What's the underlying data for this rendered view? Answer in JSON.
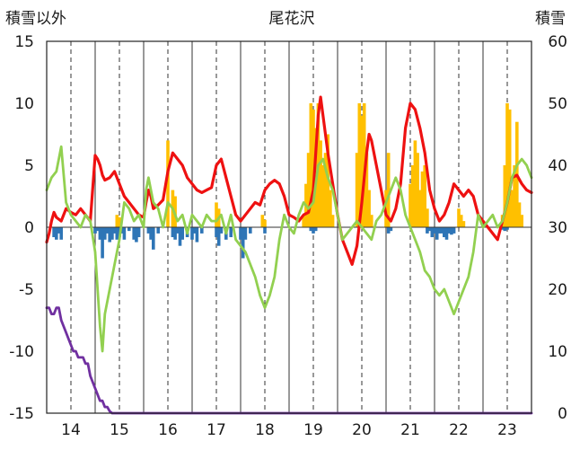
{
  "chart_data": {
    "type": "line",
    "title": "尾花沢",
    "left_axis_label": "積雪以外",
    "right_axis_label": "積雪",
    "left_ylim": [
      -15,
      15
    ],
    "left_yticks": [
      "15",
      "10",
      "5",
      "0",
      "-5",
      "-10",
      "-15"
    ],
    "right_ylim": [
      0,
      60
    ],
    "right_yticks": [
      "60",
      "50",
      "40",
      "30",
      "20",
      "10",
      "0"
    ],
    "xlim": [
      13.5,
      23.5
    ],
    "xticks": [
      "14",
      "15",
      "16",
      "17",
      "18",
      "19",
      "20",
      "21",
      "22",
      "23"
    ],
    "grid": "vertical dashed lines at each year, solid lines at half-years",
    "colors": {
      "red_line": "#ee1111",
      "green_line": "#92d050",
      "purple_line": "#7030a0",
      "orange_bars": "#ffc000",
      "blue_bars": "#2e75b6"
    },
    "series": [
      {
        "color": "#ee1111",
        "axis": "left",
        "x": [
          13.5,
          13.55,
          13.6,
          13.65,
          13.7,
          13.8,
          13.85,
          13.9,
          14.0,
          14.1,
          14.2,
          14.3,
          14.4,
          14.5,
          14.55,
          14.6,
          14.65,
          14.7,
          14.8,
          14.9,
          15.0,
          15.1,
          15.2,
          15.3,
          15.4,
          15.5,
          15.55,
          15.6,
          15.65,
          15.7,
          15.8,
          15.9,
          16.0,
          16.1,
          16.2,
          16.3,
          16.4,
          16.5,
          16.6,
          16.7,
          16.8,
          16.9,
          17.0,
          17.1,
          17.2,
          17.3,
          17.4,
          17.5,
          17.6,
          17.7,
          17.8,
          17.9,
          18.0,
          18.1,
          18.2,
          18.3,
          18.4,
          18.5,
          18.6,
          18.7,
          18.8,
          18.9,
          19.0,
          19.05,
          19.1,
          19.15,
          19.2,
          19.3,
          19.4,
          19.5,
          19.6,
          19.7,
          19.8,
          19.9,
          20.0,
          20.1,
          20.15,
          20.2,
          20.3,
          20.4,
          20.5,
          20.6,
          20.7,
          20.8,
          20.9,
          21.0,
          21.1,
          21.2,
          21.3,
          21.4,
          21.5,
          21.6,
          21.7,
          21.8,
          21.9,
          22.0,
          22.1,
          22.2,
          22.3,
          22.4,
          22.5,
          22.6,
          22.7,
          22.8,
          22.9,
          23.0,
          23.1,
          23.2,
          23.3,
          23.4,
          23.5
        ],
        "values": [
          -1.2,
          -0.5,
          0.5,
          1.2,
          0.8,
          0.5,
          1.0,
          1.5,
          1.2,
          1.0,
          1.5,
          1.0,
          0.5,
          5.8,
          5.5,
          5.0,
          4.2,
          3.8,
          4.0,
          4.5,
          3.5,
          2.5,
          2.0,
          1.5,
          1.0,
          0.8,
          2.0,
          3.0,
          2.5,
          1.5,
          1.8,
          2.2,
          4.5,
          6.0,
          5.5,
          5.0,
          4.0,
          3.5,
          3.0,
          2.8,
          3.0,
          3.2,
          5.0,
          5.5,
          4.0,
          2.5,
          1.0,
          0.5,
          1.0,
          1.5,
          2.0,
          1.8,
          3.0,
          3.5,
          3.8,
          3.5,
          2.5,
          1.0,
          0.8,
          0.5,
          1.0,
          1.2,
          3.0,
          6.0,
          9.0,
          10.5,
          9.0,
          6.0,
          3.5,
          1.0,
          -1.0,
          -2.0,
          -3.0,
          -1.5,
          2.0,
          6.0,
          7.5,
          7.0,
          5.0,
          3.0,
          1.0,
          0.5,
          1.5,
          3.5,
          8.0,
          10.0,
          9.5,
          8.0,
          6.0,
          3.0,
          1.5,
          0.5,
          1.0,
          2.0,
          3.5,
          3.0,
          2.5,
          3.0,
          2.5,
          1.0,
          0.5,
          0.0,
          -0.5,
          -1.0,
          0.5,
          2.0,
          4.0,
          4.2,
          3.5,
          3.0,
          2.8
        ]
      },
      {
        "color": "#92d050",
        "axis": "left",
        "x": [
          13.5,
          13.6,
          13.7,
          13.8,
          13.9,
          14.0,
          14.1,
          14.2,
          14.3,
          14.4,
          14.5,
          14.6,
          14.65,
          14.7,
          14.8,
          14.9,
          15.0,
          15.1,
          15.2,
          15.3,
          15.4,
          15.5,
          15.55,
          15.6,
          15.7,
          15.8,
          15.9,
          16.0,
          16.1,
          16.2,
          16.3,
          16.4,
          16.5,
          16.6,
          16.7,
          16.8,
          16.9,
          17.0,
          17.1,
          17.2,
          17.3,
          17.4,
          17.5,
          17.6,
          17.7,
          17.8,
          17.9,
          18.0,
          18.1,
          18.2,
          18.3,
          18.4,
          18.5,
          18.6,
          18.7,
          18.8,
          18.9,
          19.0,
          19.1,
          19.2,
          19.3,
          19.4,
          19.5,
          19.6,
          19.7,
          19.8,
          19.9,
          20.0,
          20.1,
          20.2,
          20.3,
          20.4,
          20.5,
          20.6,
          20.7,
          20.8,
          20.9,
          21.0,
          21.1,
          21.2,
          21.3,
          21.4,
          21.5,
          21.6,
          21.7,
          21.8,
          21.9,
          22.0,
          22.1,
          22.2,
          22.3,
          22.4,
          22.5,
          22.6,
          22.7,
          22.8,
          22.9,
          23.0,
          23.1,
          23.2,
          23.3,
          23.4,
          23.5
        ],
        "values": [
          3.0,
          4.0,
          4.5,
          6.5,
          2.0,
          1.0,
          0.5,
          0.0,
          1.0,
          0.5,
          -2.0,
          -8.0,
          -10.0,
          -7.0,
          -5.0,
          -3.0,
          -1.0,
          2.0,
          1.5,
          0.5,
          1.0,
          0.0,
          3.0,
          4.0,
          2.0,
          1.5,
          0.0,
          2.0,
          1.5,
          0.5,
          1.0,
          -0.5,
          1.0,
          0.5,
          0.0,
          1.0,
          0.5,
          0.5,
          1.0,
          -0.5,
          1.0,
          -1.0,
          -1.5,
          -2.0,
          -3.0,
          -4.0,
          -5.5,
          -6.5,
          -5.5,
          -4.0,
          -1.0,
          1.0,
          0.0,
          -0.5,
          1.0,
          2.0,
          1.5,
          2.0,
          5.0,
          5.5,
          4.0,
          3.0,
          1.0,
          -1.0,
          -0.5,
          0.0,
          0.5,
          0.0,
          -0.5,
          -1.0,
          0.5,
          1.0,
          2.0,
          3.0,
          4.0,
          3.0,
          1.0,
          0.0,
          -1.0,
          -2.0,
          -3.5,
          -4.0,
          -5.0,
          -5.5,
          -5.0,
          -6.0,
          -7.0,
          -6.0,
          -5.0,
          -4.0,
          -2.0,
          1.0,
          0.0,
          0.5,
          1.0,
          0.0,
          0.5,
          2.0,
          4.0,
          5.0,
          5.5,
          5.0,
          4.0
        ]
      },
      {
        "color": "#7030a0",
        "axis": "right",
        "x": [
          13.5,
          13.55,
          13.6,
          13.65,
          13.7,
          13.75,
          13.8,
          13.85,
          13.9,
          13.95,
          14.0,
          14.05,
          14.1,
          14.15,
          14.2,
          14.25,
          14.3,
          14.35,
          14.4,
          14.45,
          14.5,
          14.55,
          14.6,
          14.65,
          14.7,
          14.75,
          14.8,
          14.85,
          14.9,
          14.95,
          15.0,
          15.5,
          16.0,
          17.0,
          18.0,
          19.0,
          20.0,
          21.0,
          22.0,
          23.0,
          23.5
        ],
        "values": [
          17,
          17,
          16,
          16,
          17,
          17,
          15,
          14,
          13,
          12,
          11,
          10,
          10,
          9,
          9,
          9,
          8,
          8,
          6,
          5,
          4,
          3,
          2,
          2,
          1,
          1,
          0.3,
          0,
          0,
          0,
          0,
          0,
          0,
          0,
          0,
          0,
          0,
          0,
          0,
          0,
          0
        ]
      }
    ],
    "bars": [
      {
        "color": "#ffc000",
        "axis": "left",
        "x": [
          14.95,
          15.0,
          16.0,
          16.1,
          16.15,
          17.0,
          17.05,
          17.95,
          18.0,
          18.8,
          18.85,
          18.9,
          18.95,
          19.0,
          19.05,
          19.1,
          19.15,
          19.2,
          19.25,
          19.3,
          19.35,
          19.4,
          19.9,
          19.95,
          20.0,
          20.05,
          20.1,
          20.15,
          20.2,
          20.5,
          20.55,
          21.0,
          21.05,
          21.1,
          21.15,
          21.2,
          21.25,
          21.3,
          21.35,
          22.0,
          22.05,
          22.1,
          22.9,
          22.95,
          23.0,
          23.05,
          23.1,
          23.15,
          23.2,
          23.25,
          23.3
        ],
        "values": [
          1.0,
          0.8,
          7.0,
          3.0,
          2.5,
          2.0,
          1.5,
          1.0,
          0.6,
          1.0,
          3.5,
          6.0,
          10.0,
          9.5,
          8.0,
          10.0,
          7.0,
          5.0,
          6.0,
          7.5,
          3.0,
          1.0,
          6.0,
          10.0,
          9.0,
          10.0,
          6.0,
          3.0,
          1.0,
          3.0,
          6.0,
          3.5,
          5.0,
          7.0,
          6.0,
          3.0,
          4.5,
          5.0,
          1.5,
          1.5,
          1.0,
          0.5,
          1.0,
          5.0,
          10.0,
          9.5,
          3.0,
          5.0,
          8.5,
          2.0,
          1.0
        ]
      },
      {
        "color": "#2e75b6",
        "axis": "left",
        "x": [
          13.65,
          13.7,
          13.75,
          13.8,
          14.5,
          14.55,
          14.6,
          14.65,
          14.7,
          14.75,
          14.8,
          14.85,
          14.9,
          14.95,
          15.0,
          15.05,
          15.1,
          15.2,
          15.3,
          15.35,
          15.4,
          15.6,
          15.65,
          15.7,
          15.8,
          16.1,
          16.15,
          16.2,
          16.25,
          16.3,
          16.4,
          16.5,
          16.55,
          16.6,
          16.7,
          17.0,
          17.05,
          17.1,
          17.2,
          17.3,
          17.5,
          17.55,
          17.6,
          17.7,
          18.0,
          18.95,
          19.0,
          19.05,
          20.55,
          20.6,
          21.35,
          21.4,
          21.45,
          21.5,
          21.55,
          21.6,
          21.65,
          21.7,
          21.75,
          21.8,
          21.85,
          21.9,
          22.9,
          22.95,
          23.0
        ],
        "values": [
          -0.8,
          -1.0,
          -0.5,
          -1.0,
          -0.5,
          -0.3,
          -1.0,
          -2.5,
          -1.0,
          -0.5,
          -1.2,
          -1.0,
          -0.5,
          -1.0,
          -0.8,
          -0.5,
          -1.0,
          -0.3,
          -1.0,
          -1.2,
          -0.8,
          -0.5,
          -1.0,
          -1.8,
          -0.5,
          -0.8,
          -1.0,
          -0.5,
          -1.5,
          -1.0,
          -0.8,
          -1.0,
          -0.5,
          -1.2,
          -0.5,
          -0.8,
          -1.5,
          -0.5,
          -1.0,
          -0.8,
          -1.0,
          -2.5,
          -1.0,
          -0.5,
          -0.5,
          -0.3,
          -0.5,
          -0.3,
          -0.5,
          -0.3,
          -0.5,
          -0.3,
          -0.8,
          -0.5,
          -1.0,
          -0.5,
          -0.5,
          -0.8,
          -1.0,
          -0.5,
          -0.6,
          -0.5,
          -0.2,
          -0.3,
          -0.2
        ]
      }
    ]
  }
}
